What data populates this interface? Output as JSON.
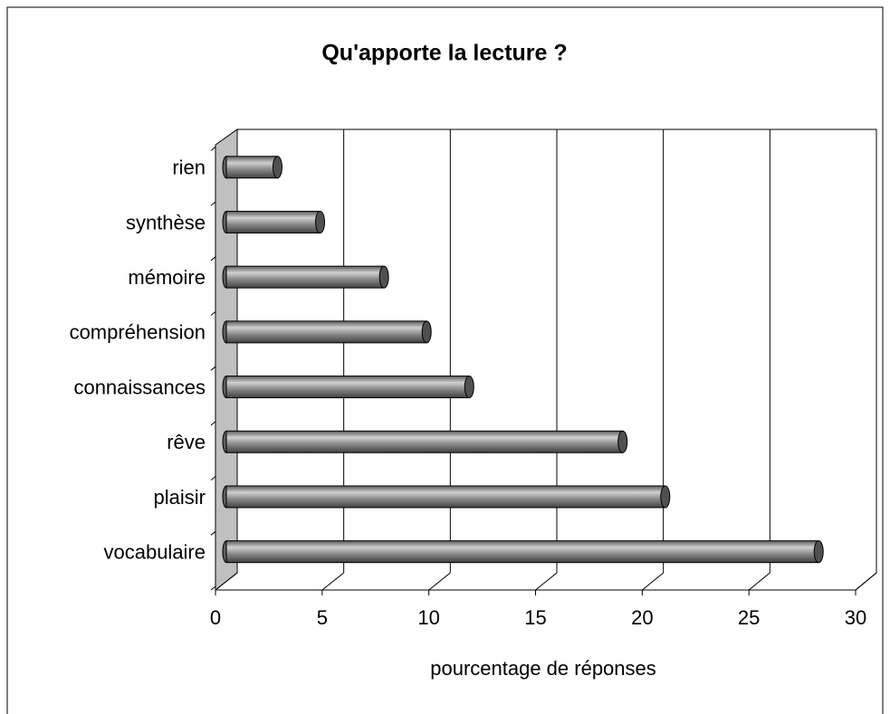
{
  "chart_data": {
    "type": "bar",
    "orientation": "horizontal",
    "title": "Qu'apporte la lecture ?",
    "categories": [
      "vocabulaire",
      "plaisir",
      "rêve",
      "connaissances",
      "compréhension",
      "mémoire",
      "synthèse",
      "rien"
    ],
    "values": [
      27.8,
      20.6,
      18.6,
      11.4,
      9.4,
      7.4,
      4.4,
      2.4
    ],
    "color": "#808080",
    "xlabel": "pourcentage de réponses",
    "xlim": [
      0,
      30
    ],
    "xticks": [
      0,
      5,
      10,
      15,
      20,
      25,
      30
    ],
    "grid": true
  }
}
